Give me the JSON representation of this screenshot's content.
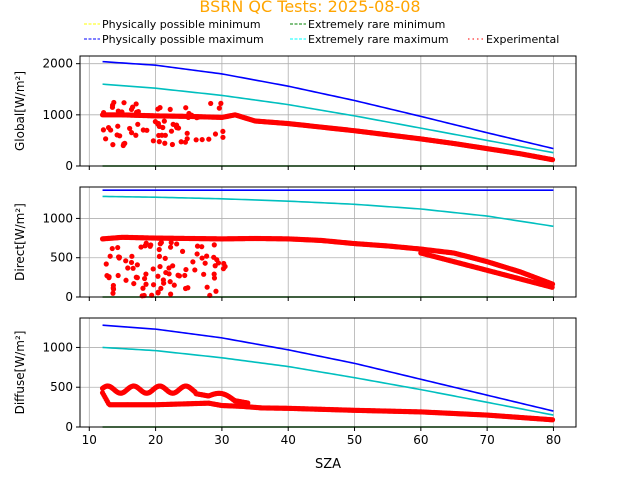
{
  "chart_data": {
    "type": "scatter",
    "title": "BSRN QC Tests: 2025-08-08",
    "title_color": "#ffa500",
    "xlabel": "SZA",
    "xlim": [
      8.6,
      83.4
    ],
    "xticks": [
      10,
      20,
      30,
      40,
      50,
      60,
      70,
      80
    ],
    "grid": true,
    "legend": {
      "placement": "top",
      "entries": [
        {
          "label": "Physically possible minimum",
          "color": "#ffff00",
          "style": "dashed"
        },
        {
          "label": "Extremely rare minimum",
          "color": "#008000",
          "style": "dashed"
        },
        {
          "label": "Physically possible maximum",
          "color": "#0000ff",
          "style": "dashed"
        },
        {
          "label": "Extremely rare maximum",
          "color": "#00ffff",
          "style": "dashed"
        },
        {
          "label": "Experimental",
          "color": "#ff0000",
          "style": "dotted"
        }
      ]
    },
    "panels": [
      {
        "name": "global",
        "ylabel": "Global[W/m²]",
        "ylim": [
          0,
          2150
        ],
        "yticks": [
          0,
          1000,
          2000
        ],
        "series": [
          {
            "name": "Physically possible maximum",
            "color": "#0000ff",
            "x": [
              12,
              20,
              30,
              40,
              50,
              60,
              70,
              80
            ],
            "y": [
              2040,
              1970,
              1800,
              1560,
              1280,
              970,
              650,
              340
            ]
          },
          {
            "name": "Extremely rare maximum",
            "color": "#00bfbf",
            "x": [
              12,
              20,
              30,
              40,
              50,
              60,
              70,
              80
            ],
            "y": [
              1600,
              1520,
              1380,
              1200,
              980,
              740,
              500,
              260
            ]
          },
          {
            "name": "Extremely rare minimum",
            "color": "#008000",
            "x": [
              12,
              80
            ],
            "y": [
              0,
              0
            ]
          },
          {
            "name": "Experimental",
            "color": "#ff0000",
            "x": [
              12,
              15,
              20,
              25,
              30,
              32,
              35,
              40,
              45,
              50,
              55,
              60,
              65,
              70,
              75,
              80
            ],
            "y": [
              1000,
              1000,
              980,
              970,
              950,
              1000,
              880,
              830,
              760,
              690,
              610,
              530,
              440,
              340,
              240,
              120
            ]
          }
        ]
      },
      {
        "name": "direct",
        "ylabel": "Direct[W/m²]",
        "ylim": [
          0,
          1400
        ],
        "yticks": [
          0,
          500,
          1000
        ],
        "series": [
          {
            "name": "Physically possible maximum",
            "color": "#0000ff",
            "x": [
              12,
              80
            ],
            "y": [
              1360,
              1360
            ]
          },
          {
            "name": "Extremely rare maximum",
            "color": "#00bfbf",
            "x": [
              12,
              20,
              30,
              40,
              50,
              60,
              70,
              80
            ],
            "y": [
              1280,
              1270,
              1250,
              1220,
              1180,
              1120,
              1030,
              900
            ]
          },
          {
            "name": "Extremely rare minimum",
            "color": "#008000",
            "x": [
              12,
              80
            ],
            "y": [
              0,
              0
            ]
          },
          {
            "name": "Experimental",
            "color": "#ff0000",
            "x": [
              12,
              15,
              20,
              25,
              30,
              35,
              40,
              45,
              50,
              55,
              60,
              65,
              70,
              75,
              80
            ],
            "y": [
              740,
              760,
              750,
              745,
              740,
              745,
              740,
              720,
              680,
              650,
              610,
              560,
              450,
              320,
              160
            ]
          }
        ]
      },
      {
        "name": "diffuse",
        "ylabel": "Diffuse[W/m²]",
        "ylim": [
          0,
          1370
        ],
        "yticks": [
          0,
          500,
          1000
        ],
        "series": [
          {
            "name": "Physically possible maximum",
            "color": "#0000ff",
            "x": [
              12,
              20,
              30,
              40,
              50,
              60,
              70,
              80
            ],
            "y": [
              1280,
              1230,
              1120,
              970,
              800,
              600,
              400,
              200
            ]
          },
          {
            "name": "Extremely rare maximum",
            "color": "#00bfbf",
            "x": [
              12,
              20,
              30,
              40,
              50,
              60,
              70,
              80
            ],
            "y": [
              1000,
              960,
              870,
              760,
              620,
              470,
              310,
              150
            ]
          },
          {
            "name": "Extremely rare minimum",
            "color": "#008000",
            "x": [
              12,
              80
            ],
            "y": [
              0,
              0
            ]
          },
          {
            "name": "Experimental",
            "color": "#ff0000",
            "x": [
              12,
              13,
              20,
              28,
              30,
              33,
              36,
              40,
              50,
              60,
              70,
              80
            ],
            "y": [
              430,
              280,
              280,
              300,
              270,
              260,
              240,
              235,
              210,
              190,
              150,
              90
            ]
          }
        ]
      }
    ]
  }
}
